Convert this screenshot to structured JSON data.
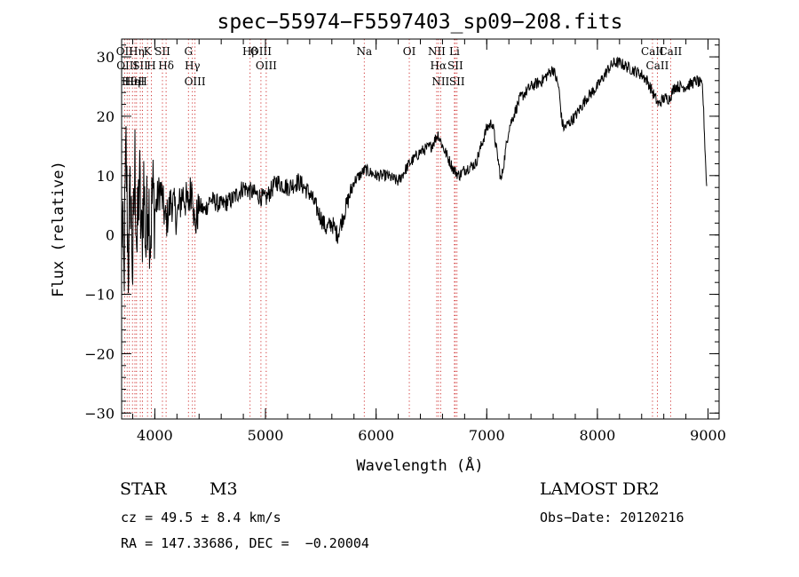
{
  "chart_data": {
    "type": "line",
    "title": "spec−55974−F5597403_sp09−208.fits",
    "xlabel": "Wavelength (Å)",
    "ylabel": "Flux (relative)",
    "xlim": [
      3700,
      9100
    ],
    "ylim": [
      -31,
      33
    ],
    "xticks": [
      4000,
      5000,
      6000,
      7000,
      8000,
      9000
    ],
    "yticks": [
      -30,
      -20,
      -10,
      0,
      10,
      20,
      30
    ],
    "grid": false,
    "series": [
      {
        "x": [
          3700,
          3720,
          3740,
          3760,
          3780,
          3800,
          3820,
          3840,
          3860,
          3880,
          3900,
          3920,
          3940,
          3960,
          3980,
          4000,
          4050,
          4100,
          4150,
          4200,
          4250,
          4300,
          4340,
          4360,
          4400,
          4450,
          4500,
          4600,
          4700,
          4800,
          4900,
          5000,
          5100,
          5200,
          5300,
          5400,
          5500,
          5550,
          5600,
          5650,
          5700,
          5750,
          5800,
          5900,
          6000,
          6100,
          6200,
          6300,
          6400,
          6500,
          6560,
          6600,
          6650,
          6700,
          6750,
          6800,
          6900,
          7000,
          7050,
          7100,
          7130,
          7200,
          7300,
          7400,
          7500,
          7600,
          7650,
          7680,
          7700,
          7800,
          7900,
          8000,
          8100,
          8150,
          8200,
          8300,
          8400,
          8450,
          8500,
          8550,
          8600,
          8650,
          8700,
          8800,
          8900,
          8950,
          8990
        ],
        "y": [
          4,
          -8,
          14,
          -5,
          8,
          -6,
          12,
          -3,
          10,
          -2,
          9,
          -2,
          8,
          0,
          7,
          4,
          8,
          2,
          6,
          3,
          7,
          5,
          9,
          1,
          5,
          4,
          6,
          5,
          6,
          8,
          7,
          6,
          9,
          8,
          9,
          7,
          3,
          1,
          2,
          0,
          3,
          6,
          9,
          11,
          10,
          10,
          9,
          12,
          14,
          15,
          17,
          15,
          13,
          11,
          10,
          11,
          12,
          18,
          19,
          13,
          9,
          18,
          23,
          25,
          26,
          28,
          25,
          19,
          18,
          20,
          23,
          25,
          28,
          29,
          29,
          28,
          27,
          26,
          24,
          22,
          23,
          23,
          25,
          25,
          26,
          25,
          7
        ]
      }
    ],
    "lines": [
      {
        "x": 3727,
        "labels": [
          "OII"
        ]
      },
      {
        "x": 3750,
        "labels": [
          "OIII"
        ]
      },
      {
        "x": 3770,
        "labels": [
          "Hθ"
        ]
      },
      {
        "x": 3798,
        "labels": [
          "Hη"
        ]
      },
      {
        "x": 3820,
        "labels": [
          "HeI"
        ]
      },
      {
        "x": 3835,
        "labels": [
          "Hη"
        ]
      },
      {
        "x": 3869,
        "labels": [
          "SII"
        ]
      },
      {
        "x": 3889,
        "labels": [
          "H"
        ]
      },
      {
        "x": 3934,
        "labels": [
          "K"
        ]
      },
      {
        "x": 3969,
        "labels": [
          "H"
        ]
      },
      {
        "x": 4069,
        "labels": [
          "SII"
        ]
      },
      {
        "x": 4102,
        "labels": [
          "Hδ"
        ]
      },
      {
        "x": 4304,
        "labels": [
          "G"
        ]
      },
      {
        "x": 4340,
        "labels": [
          "Hγ"
        ]
      },
      {
        "x": 4363,
        "labels": [
          "OIII"
        ]
      },
      {
        "x": 4861,
        "labels": [
          "Hβ"
        ]
      },
      {
        "x": 4959,
        "labels": [
          "OIII"
        ]
      },
      {
        "x": 5007,
        "labels": [
          "OIII"
        ]
      },
      {
        "x": 5893,
        "labels": [
          "Na"
        ]
      },
      {
        "x": 6300,
        "labels": [
          "OI"
        ]
      },
      {
        "x": 6548,
        "labels": [
          "NII"
        ]
      },
      {
        "x": 6563,
        "labels": [
          "Hα"
        ]
      },
      {
        "x": 6583,
        "labels": [
          "NII"
        ]
      },
      {
        "x": 6708,
        "labels": [
          "Li"
        ]
      },
      {
        "x": 6716,
        "labels": [
          "SII"
        ]
      },
      {
        "x": 6731,
        "labels": [
          "SII"
        ]
      },
      {
        "x": 8498,
        "labels": [
          "CaII"
        ]
      },
      {
        "x": 8542,
        "labels": [
          "CaII"
        ]
      },
      {
        "x": 8662,
        "labels": [
          "CaII"
        ]
      }
    ]
  },
  "info": {
    "class_text": "STAR",
    "subclass_text": "M3",
    "survey_text": "LAMOST DR2",
    "cz_text": "cz = 49.5 ± 8.4 km/s",
    "obs_date_text": "Obs−Date: 20120216",
    "radec_text": "RA = 147.33686, DEC =  −0.20004"
  }
}
